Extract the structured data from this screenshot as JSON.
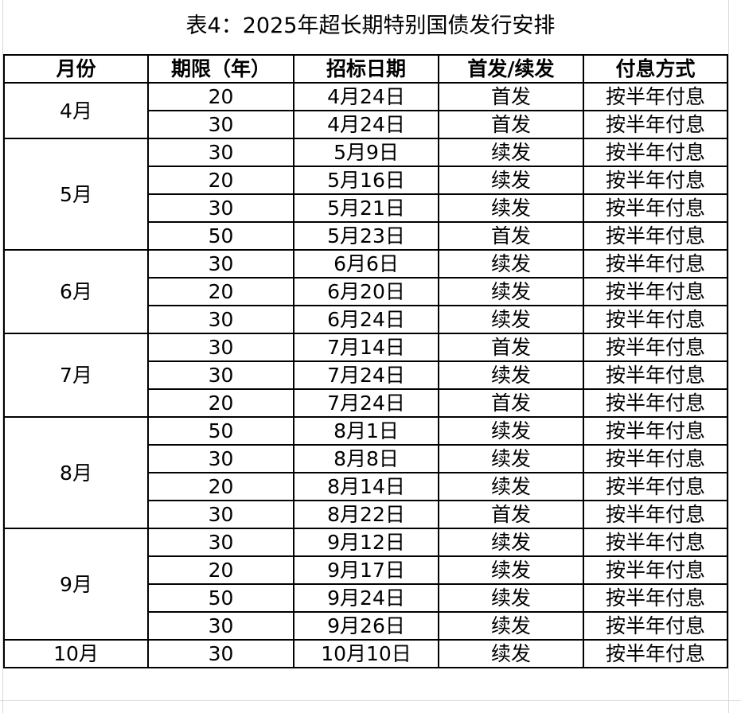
{
  "title": "表4：2025年超长期特别国债发行安排",
  "headers": [
    "月份",
    "期限（年）",
    "招标日期",
    "首发/续发",
    "付息方式"
  ],
  "groups": [
    {
      "month": "4月",
      "rows": [
        [
          "20",
          "4月24日",
          "首发",
          "按半年付息"
        ],
        [
          "30",
          "4月24日",
          "首发",
          "按半年付息"
        ]
      ]
    },
    {
      "month": "5月",
      "rows": [
        [
          "30",
          "5月9日",
          "续发",
          "按半年付息"
        ],
        [
          "20",
          "5月16日",
          "续发",
          "按半年付息"
        ],
        [
          "30",
          "5月21日",
          "续发",
          "按半年付息"
        ],
        [
          "50",
          "5月23日",
          "首发",
          "按半年付息"
        ]
      ]
    },
    {
      "month": "6月",
      "rows": [
        [
          "30",
          "6月6日",
          "续发",
          "按半年付息"
        ],
        [
          "20",
          "6月20日",
          "续发",
          "按半年付息"
        ],
        [
          "30",
          "6月24日",
          "续发",
          "按半年付息"
        ]
      ]
    },
    {
      "month": "7月",
      "rows": [
        [
          "30",
          "7月14日",
          "首发",
          "按半年付息"
        ],
        [
          "30",
          "7月24日",
          "续发",
          "按半年付息"
        ],
        [
          "20",
          "7月24日",
          "首发",
          "按半年付息"
        ]
      ]
    },
    {
      "month": "8月",
      "rows": [
        [
          "50",
          "8月1日",
          "续发",
          "按半年付息"
        ],
        [
          "30",
          "8月8日",
          "续发",
          "按半年付息"
        ],
        [
          "20",
          "8月14日",
          "续发",
          "按半年付息"
        ],
        [
          "30",
          "8月22日",
          "首发",
          "按半年付息"
        ]
      ]
    },
    {
      "month": "9月",
      "rows": [
        [
          "30",
          "9月12日",
          "续发",
          "按半年付息"
        ],
        [
          "20",
          "9月17日",
          "续发",
          "按半年付息"
        ],
        [
          "50",
          "9月24日",
          "续发",
          "按半年付息"
        ],
        [
          "30",
          "9月26日",
          "续发",
          "按半年付息"
        ]
      ]
    },
    {
      "month": "10月",
      "rows": [
        [
          "30",
          "10月10日",
          "续发",
          "按半年付息"
        ]
      ]
    }
  ]
}
